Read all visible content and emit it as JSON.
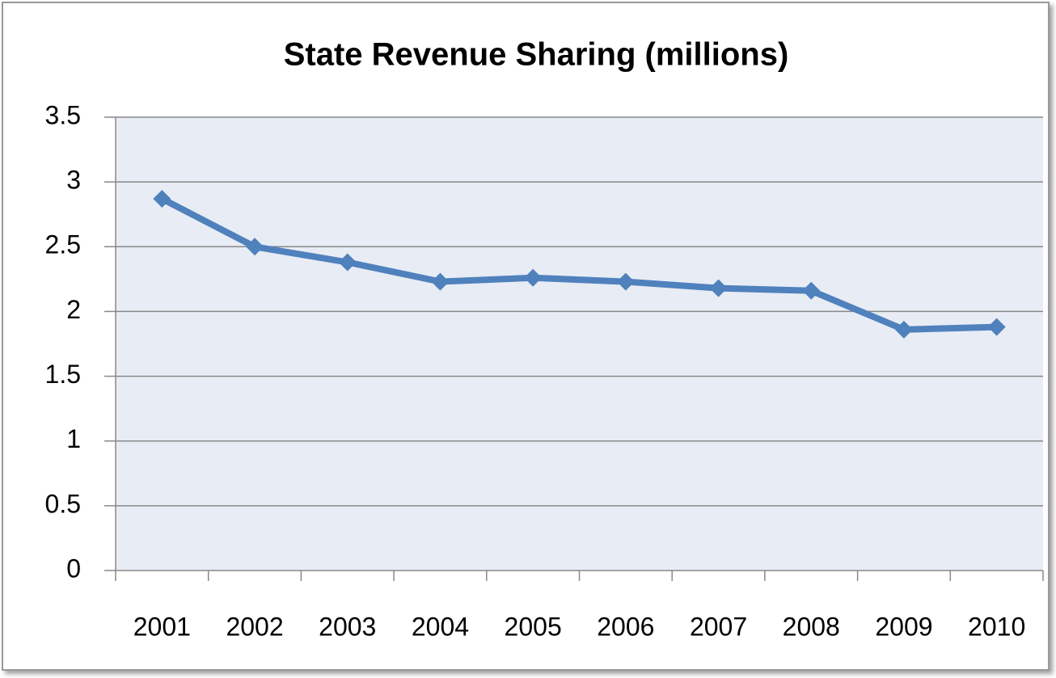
{
  "chart_data": {
    "type": "line",
    "title": "State Revenue Sharing (millions)",
    "categories": [
      "2001",
      "2002",
      "2003",
      "2004",
      "2005",
      "2006",
      "2007",
      "2008",
      "2009",
      "2010"
    ],
    "series": [
      {
        "name": "State Revenue Sharing",
        "color": "#4f81bd",
        "values": [
          2.87,
          2.5,
          2.38,
          2.23,
          2.26,
          2.23,
          2.18,
          2.16,
          1.86,
          1.88
        ]
      }
    ],
    "ylim": [
      0,
      3.5
    ],
    "yticks": [
      0,
      0.5,
      1,
      1.5,
      2,
      2.5,
      3,
      3.5
    ],
    "grid": true
  }
}
